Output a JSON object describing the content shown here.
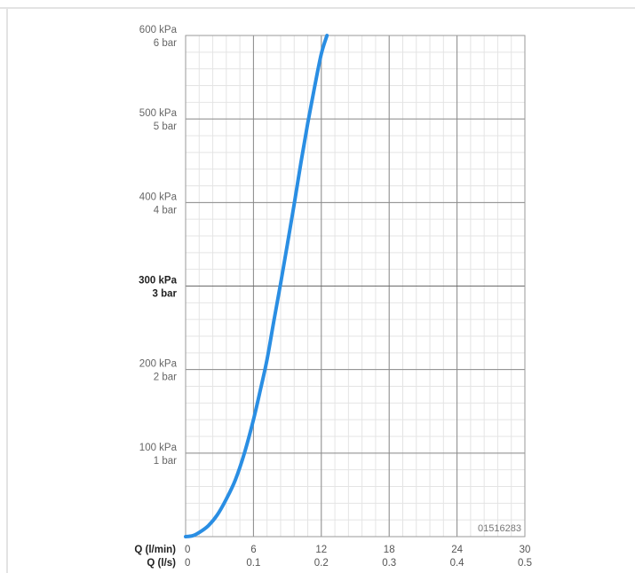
{
  "chart_data": {
    "type": "line",
    "x_unit_primary": "Q (l/min)",
    "x_unit_secondary": "Q (l/s)",
    "x_ticks_primary": [
      "0",
      "6",
      "12",
      "18",
      "24",
      "30"
    ],
    "x_ticks_secondary": [
      "0",
      "0.1",
      "0.2",
      "0.3",
      "0.4",
      "0.5"
    ],
    "xlim": [
      0,
      30
    ],
    "ylim": [
      0,
      600
    ],
    "y_ticks": [
      {
        "value": 600,
        "kpa": "600 kPa",
        "bar": "6 bar",
        "bold": false
      },
      {
        "value": 500,
        "kpa": "500 kPa",
        "bar": "5 bar",
        "bold": false
      },
      {
        "value": 400,
        "kpa": "400 kPa",
        "bar": "4 bar",
        "bold": false
      },
      {
        "value": 300,
        "kpa": "300 kPa",
        "bar": "3 bar",
        "bold": true
      },
      {
        "value": 200,
        "kpa": "200 kPa",
        "bar": "2 bar",
        "bold": false
      },
      {
        "value": 100,
        "kpa": "100 kPa",
        "bar": "1 bar",
        "bold": false
      }
    ],
    "grid": true,
    "series": [
      {
        "color": "#2a8ee3",
        "x": [
          0,
          0.6,
          1.2,
          2.0,
          2.8,
          3.6,
          4.4,
          5.2,
          6.0,
          6.6,
          7.2,
          7.8,
          8.4,
          9.0,
          9.6,
          10.2,
          10.8,
          11.4,
          12.0,
          12.5
        ],
        "y": [
          0,
          1,
          5,
          13,
          26,
          45,
          68,
          100,
          140,
          175,
          212,
          258,
          303,
          350,
          398,
          448,
          495,
          538,
          578,
          600
        ]
      }
    ],
    "annotation": "01516283"
  }
}
